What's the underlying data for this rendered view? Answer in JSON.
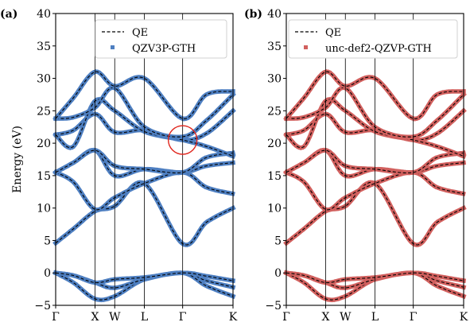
{
  "chart_data": [
    {
      "type": "line",
      "panel_label": "(a)",
      "ylabel": "Energy (eV)",
      "ylim": [
        -5,
        40
      ],
      "yticks": [
        -5,
        0,
        5,
        10,
        15,
        20,
        25,
        30,
        35,
        40
      ],
      "ytick_labels": [
        "−5",
        "0",
        "5",
        "10",
        "15",
        "20",
        "25",
        "30",
        "35",
        "40"
      ],
      "x_ticks": [
        {
          "label": "Γ",
          "pos": 0.0
        },
        {
          "label": "X",
          "pos": 0.222
        },
        {
          "label": "W",
          "pos": 0.333
        },
        {
          "label": "L",
          "pos": 0.5
        },
        {
          "label": "Γ",
          "pos": 0.716
        },
        {
          "label": "K",
          "pos": 1.0
        }
      ],
      "grid": false,
      "legend_position": "top-right",
      "series": [
        {
          "name": "QE",
          "style": "dashed",
          "color": "#000000"
        },
        {
          "name": "QZV3P-GTH",
          "style": "markers",
          "color": "#4e7fc1"
        }
      ],
      "annotation": {
        "type": "circle",
        "x": 0.716,
        "y": 20.5,
        "color": "#e0241b"
      },
      "bands": [
        [
          [
            0.0,
            0.0
          ],
          [
            0.1,
            -1.5
          ],
          [
            0.222,
            -4.0
          ],
          [
            0.333,
            -3.6
          ],
          [
            0.5,
            -1.0
          ],
          [
            0.716,
            0.0
          ],
          [
            0.85,
            -1.2
          ],
          [
            1.0,
            -2.2
          ]
        ],
        [
          [
            0.0,
            0.0
          ],
          [
            0.1,
            -0.4
          ],
          [
            0.222,
            -1.5
          ],
          [
            0.333,
            -2.3
          ],
          [
            0.5,
            -1.0
          ],
          [
            0.716,
            0.0
          ],
          [
            0.85,
            -2.0
          ],
          [
            1.0,
            -3.6
          ]
        ],
        [
          [
            0.0,
            0.0
          ],
          [
            0.1,
            -0.4
          ],
          [
            0.222,
            -1.5
          ],
          [
            0.333,
            -1.0
          ],
          [
            0.5,
            -0.7
          ],
          [
            0.716,
            0.0
          ],
          [
            0.85,
            -0.5
          ],
          [
            1.0,
            -1.2
          ]
        ],
        [
          [
            0.0,
            4.6
          ],
          [
            0.1,
            6.8
          ],
          [
            0.222,
            9.5
          ],
          [
            0.333,
            10.3
          ],
          [
            0.5,
            13.8
          ],
          [
            0.716,
            4.5
          ],
          [
            0.85,
            7.8
          ],
          [
            1.0,
            10.0
          ]
        ],
        [
          [
            0.0,
            15.5
          ],
          [
            0.1,
            14.0
          ],
          [
            0.222,
            9.8
          ],
          [
            0.333,
            11.6
          ],
          [
            0.5,
            13.8
          ],
          [
            0.716,
            15.5
          ],
          [
            0.85,
            13.2
          ],
          [
            1.0,
            12.2
          ]
        ],
        [
          [
            0.0,
            15.5
          ],
          [
            0.1,
            17.0
          ],
          [
            0.222,
            18.9
          ],
          [
            0.333,
            15.0
          ],
          [
            0.5,
            16.0
          ],
          [
            0.716,
            15.5
          ],
          [
            0.85,
            16.5
          ],
          [
            1.0,
            17.0
          ]
        ],
        [
          [
            0.0,
            15.5
          ],
          [
            0.1,
            17.0
          ],
          [
            0.222,
            18.9
          ],
          [
            0.333,
            16.5
          ],
          [
            0.5,
            16.0
          ],
          [
            0.716,
            15.5
          ],
          [
            0.85,
            17.8
          ],
          [
            1.0,
            18.5
          ]
        ],
        [
          [
            0.0,
            21.3
          ],
          [
            0.1,
            22.0
          ],
          [
            0.222,
            24.5
          ],
          [
            0.333,
            21.7
          ],
          [
            0.5,
            22.0
          ],
          [
            0.716,
            20.5
          ],
          [
            0.85,
            21.5
          ],
          [
            1.0,
            25.0
          ]
        ],
        [
          [
            0.0,
            21.3
          ],
          [
            0.1,
            19.5
          ],
          [
            0.222,
            26.5
          ],
          [
            0.333,
            25.0
          ],
          [
            0.5,
            21.8
          ],
          [
            0.716,
            20.5
          ],
          [
            0.85,
            19.5
          ],
          [
            1.0,
            18.0
          ]
        ],
        [
          [
            0.0,
            23.8
          ],
          [
            0.1,
            24.0
          ],
          [
            0.222,
            25.5
          ],
          [
            0.333,
            28.5
          ],
          [
            0.5,
            22.5
          ],
          [
            0.716,
            21.0
          ],
          [
            0.85,
            23.5
          ],
          [
            1.0,
            27.5
          ]
        ],
        [
          [
            0.0,
            23.8
          ],
          [
            0.1,
            27.0
          ],
          [
            0.222,
            31.0
          ],
          [
            0.333,
            28.8
          ],
          [
            0.5,
            30.0
          ],
          [
            0.716,
            23.8
          ],
          [
            0.85,
            27.5
          ],
          [
            1.0,
            28.0
          ]
        ]
      ]
    },
    {
      "type": "line",
      "panel_label": "(b)",
      "ylabel": "",
      "ylim": [
        -5,
        40
      ],
      "yticks": [
        -5,
        0,
        5,
        10,
        15,
        20,
        25,
        30,
        35,
        40
      ],
      "ytick_labels": [
        "−5",
        "0",
        "5",
        "10",
        "15",
        "20",
        "25",
        "30",
        "35",
        "40"
      ],
      "x_ticks": [
        {
          "label": "Γ",
          "pos": 0.0
        },
        {
          "label": "X",
          "pos": 0.222
        },
        {
          "label": "W",
          "pos": 0.333
        },
        {
          "label": "L",
          "pos": 0.5
        },
        {
          "label": "Γ",
          "pos": 0.716
        },
        {
          "label": "K",
          "pos": 1.0
        }
      ],
      "grid": false,
      "legend_position": "top-right",
      "series": [
        {
          "name": "QE",
          "style": "dashed",
          "color": "#000000"
        },
        {
          "name": "unc-def2-QZVP-GTH",
          "style": "markers",
          "color": "#d1605e"
        }
      ],
      "bands": [
        [
          [
            0.0,
            0.0
          ],
          [
            0.1,
            -1.5
          ],
          [
            0.222,
            -4.0
          ],
          [
            0.333,
            -3.6
          ],
          [
            0.5,
            -1.0
          ],
          [
            0.716,
            0.0
          ],
          [
            0.85,
            -1.2
          ],
          [
            1.0,
            -2.2
          ]
        ],
        [
          [
            0.0,
            0.0
          ],
          [
            0.1,
            -0.4
          ],
          [
            0.222,
            -1.5
          ],
          [
            0.333,
            -2.3
          ],
          [
            0.5,
            -1.0
          ],
          [
            0.716,
            0.0
          ],
          [
            0.85,
            -2.0
          ],
          [
            1.0,
            -3.6
          ]
        ],
        [
          [
            0.0,
            0.0
          ],
          [
            0.1,
            -0.4
          ],
          [
            0.222,
            -1.5
          ],
          [
            0.333,
            -1.0
          ],
          [
            0.5,
            -0.7
          ],
          [
            0.716,
            0.0
          ],
          [
            0.85,
            -0.5
          ],
          [
            1.0,
            -1.2
          ]
        ],
        [
          [
            0.0,
            4.6
          ],
          [
            0.1,
            6.8
          ],
          [
            0.222,
            9.5
          ],
          [
            0.333,
            10.3
          ],
          [
            0.5,
            13.8
          ],
          [
            0.716,
            4.5
          ],
          [
            0.85,
            7.8
          ],
          [
            1.0,
            10.0
          ]
        ],
        [
          [
            0.0,
            15.5
          ],
          [
            0.1,
            14.0
          ],
          [
            0.222,
            9.8
          ],
          [
            0.333,
            11.6
          ],
          [
            0.5,
            13.8
          ],
          [
            0.716,
            15.5
          ],
          [
            0.85,
            13.2
          ],
          [
            1.0,
            12.2
          ]
        ],
        [
          [
            0.0,
            15.5
          ],
          [
            0.1,
            17.0
          ],
          [
            0.222,
            18.9
          ],
          [
            0.333,
            15.0
          ],
          [
            0.5,
            16.0
          ],
          [
            0.716,
            15.5
          ],
          [
            0.85,
            16.5
          ],
          [
            1.0,
            17.0
          ]
        ],
        [
          [
            0.0,
            15.5
          ],
          [
            0.1,
            17.0
          ],
          [
            0.222,
            18.9
          ],
          [
            0.333,
            16.5
          ],
          [
            0.5,
            16.0
          ],
          [
            0.716,
            15.5
          ],
          [
            0.85,
            17.8
          ],
          [
            1.0,
            18.5
          ]
        ],
        [
          [
            0.0,
            21.3
          ],
          [
            0.1,
            22.0
          ],
          [
            0.222,
            24.5
          ],
          [
            0.333,
            21.7
          ],
          [
            0.5,
            22.0
          ],
          [
            0.716,
            20.5
          ],
          [
            0.85,
            21.5
          ],
          [
            1.0,
            25.0
          ]
        ],
        [
          [
            0.0,
            21.3
          ],
          [
            0.1,
            19.5
          ],
          [
            0.222,
            26.5
          ],
          [
            0.333,
            25.0
          ],
          [
            0.5,
            21.8
          ],
          [
            0.716,
            20.5
          ],
          [
            0.85,
            19.5
          ],
          [
            1.0,
            18.0
          ]
        ],
        [
          [
            0.0,
            23.8
          ],
          [
            0.1,
            24.0
          ],
          [
            0.222,
            25.5
          ],
          [
            0.333,
            28.5
          ],
          [
            0.5,
            22.5
          ],
          [
            0.716,
            21.0
          ],
          [
            0.85,
            23.5
          ],
          [
            1.0,
            27.5
          ]
        ],
        [
          [
            0.0,
            23.8
          ],
          [
            0.1,
            27.0
          ],
          [
            0.222,
            31.0
          ],
          [
            0.333,
            28.8
          ],
          [
            0.5,
            30.0
          ],
          [
            0.716,
            23.8
          ],
          [
            0.85,
            27.5
          ],
          [
            1.0,
            28.0
          ]
        ]
      ]
    }
  ]
}
